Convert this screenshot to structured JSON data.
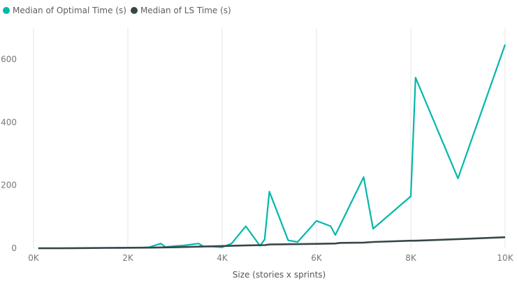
{
  "chart_data": {
    "type": "line",
    "title": "",
    "xlabel": "Size (stories x sprints)",
    "ylabel": "",
    "xlim": [
      0,
      10000
    ],
    "ylim": [
      0,
      700
    ],
    "x_ticks": [
      0,
      2000,
      4000,
      6000,
      8000,
      10000
    ],
    "x_tick_labels": [
      "0K",
      "2K",
      "4K",
      "6K",
      "8K",
      "10K"
    ],
    "y_ticks": [
      0,
      200,
      400,
      600
    ],
    "y_tick_labels": [
      "0",
      "200",
      "400",
      "600"
    ],
    "grid": "vertical",
    "legend_position": "top-left",
    "series": [
      {
        "name": "Median of Optimal Time (s)",
        "color": "#01b8aa",
        "points": [
          [
            100,
            0
          ],
          [
            300,
            0
          ],
          [
            500,
            0
          ],
          [
            700,
            0
          ],
          [
            900,
            0
          ],
          [
            1100,
            0.5
          ],
          [
            1300,
            0.5
          ],
          [
            1500,
            1
          ],
          [
            1700,
            1
          ],
          [
            1900,
            1
          ],
          [
            2100,
            1.5
          ],
          [
            2300,
            2
          ],
          [
            2450,
            3
          ],
          [
            2700,
            15
          ],
          [
            2800,
            4
          ],
          [
            3000,
            7
          ],
          [
            3200,
            9
          ],
          [
            3500,
            15
          ],
          [
            3600,
            6
          ],
          [
            3800,
            5
          ],
          [
            4000,
            3
          ],
          [
            4200,
            15
          ],
          [
            4500,
            70
          ],
          [
            4800,
            8
          ],
          [
            4900,
            28
          ],
          [
            5000,
            180
          ],
          [
            5400,
            25
          ],
          [
            5600,
            20
          ],
          [
            6000,
            87
          ],
          [
            6300,
            70
          ],
          [
            6400,
            42
          ],
          [
            7000,
            226
          ],
          [
            7200,
            62
          ],
          [
            8000,
            165
          ],
          [
            8100,
            542
          ],
          [
            9000,
            222
          ],
          [
            10000,
            647
          ]
        ]
      },
      {
        "name": "Median of LS Time (s)",
        "color": "#374649",
        "points": [
          [
            100,
            0
          ],
          [
            500,
            0
          ],
          [
            1000,
            0.5
          ],
          [
            1500,
            1
          ],
          [
            2000,
            1.5
          ],
          [
            2500,
            2
          ],
          [
            3000,
            3
          ],
          [
            3500,
            5
          ],
          [
            4000,
            7
          ],
          [
            4500,
            9
          ],
          [
            4900,
            10
          ],
          [
            5000,
            12
          ],
          [
            5600,
            13
          ],
          [
            6000,
            14
          ],
          [
            6400,
            15
          ],
          [
            6500,
            17
          ],
          [
            7000,
            18
          ],
          [
            7200,
            20
          ],
          [
            8000,
            24
          ],
          [
            8100,
            24
          ],
          [
            9000,
            29
          ],
          [
            10000,
            35
          ]
        ]
      }
    ]
  }
}
